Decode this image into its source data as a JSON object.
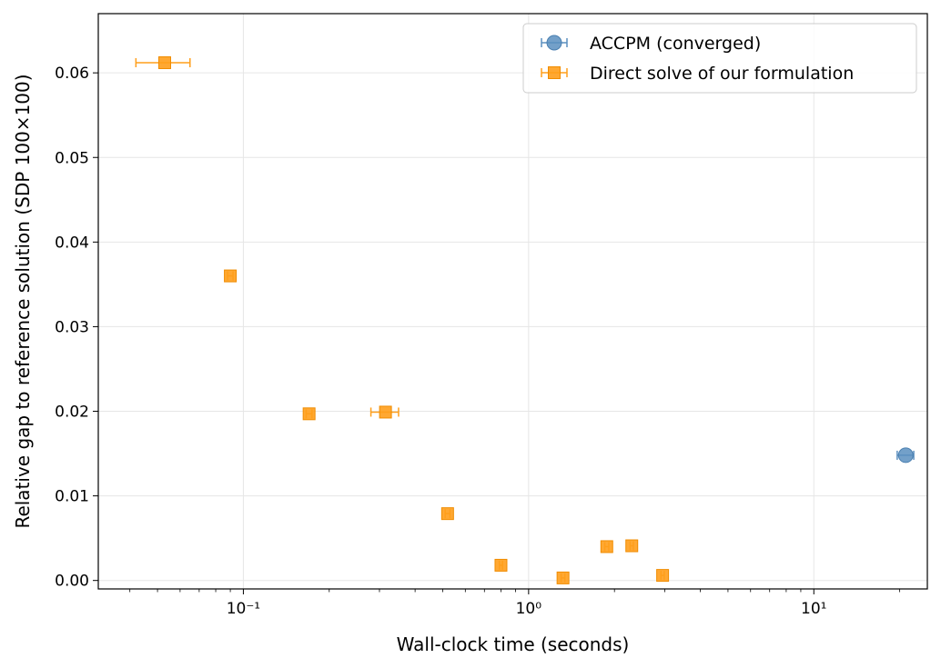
{
  "chart_data": {
    "type": "scatter",
    "xscale": "log",
    "xlabel": "Wall-clock time (seconds)",
    "ylabel": "Relative gap to reference solution (SDP 100×100)",
    "xlim": [
      0.031,
      25
    ],
    "ylim": [
      -0.001,
      0.067
    ],
    "grid": true,
    "legend_position": "top-right",
    "x_ticks": [
      {
        "value": 0.1,
        "label": "10⁻¹"
      },
      {
        "value": 1,
        "label": "10⁰"
      },
      {
        "value": 10,
        "label": "10¹"
      }
    ],
    "y_ticks": [
      {
        "value": 0.0,
        "label": "0.00"
      },
      {
        "value": 0.01,
        "label": "0.01"
      },
      {
        "value": 0.02,
        "label": "0.02"
      },
      {
        "value": 0.03,
        "label": "0.03"
      },
      {
        "value": 0.04,
        "label": "0.04"
      },
      {
        "value": 0.05,
        "label": "0.05"
      },
      {
        "value": 0.06,
        "label": "0.06"
      }
    ],
    "series": [
      {
        "name": "ACCPM (converged)",
        "marker": "circle",
        "color": "#5b8fbf",
        "points": [
          {
            "x": 21.0,
            "y": 0.0148,
            "xerr": [
              19.6,
              22.4
            ]
          }
        ]
      },
      {
        "name": "Direct solve of our formulation",
        "marker": "square",
        "color": "#ff9f1c",
        "points": [
          {
            "x": 0.053,
            "y": 0.0612,
            "xerr": [
              0.042,
              0.065
            ]
          },
          {
            "x": 0.09,
            "y": 0.036,
            "xerr": [
              0.088,
              0.092
            ]
          },
          {
            "x": 0.17,
            "y": 0.0197,
            "xerr": [
              0.166,
              0.174
            ]
          },
          {
            "x": 0.315,
            "y": 0.0199,
            "xerr": [
              0.28,
              0.35
            ]
          },
          {
            "x": 0.52,
            "y": 0.0079,
            "xerr": [
              0.51,
              0.53
            ]
          },
          {
            "x": 0.8,
            "y": 0.0018,
            "xerr": [
              0.79,
              0.81
            ]
          },
          {
            "x": 1.32,
            "y": 0.0003,
            "xerr": [
              1.3,
              1.34
            ]
          },
          {
            "x": 1.88,
            "y": 0.004,
            "xerr": [
              1.85,
              1.91
            ]
          },
          {
            "x": 2.3,
            "y": 0.0041,
            "xerr": [
              2.27,
              2.33
            ]
          },
          {
            "x": 2.95,
            "y": 0.0006,
            "xerr": [
              2.91,
              2.99
            ]
          }
        ]
      }
    ]
  }
}
